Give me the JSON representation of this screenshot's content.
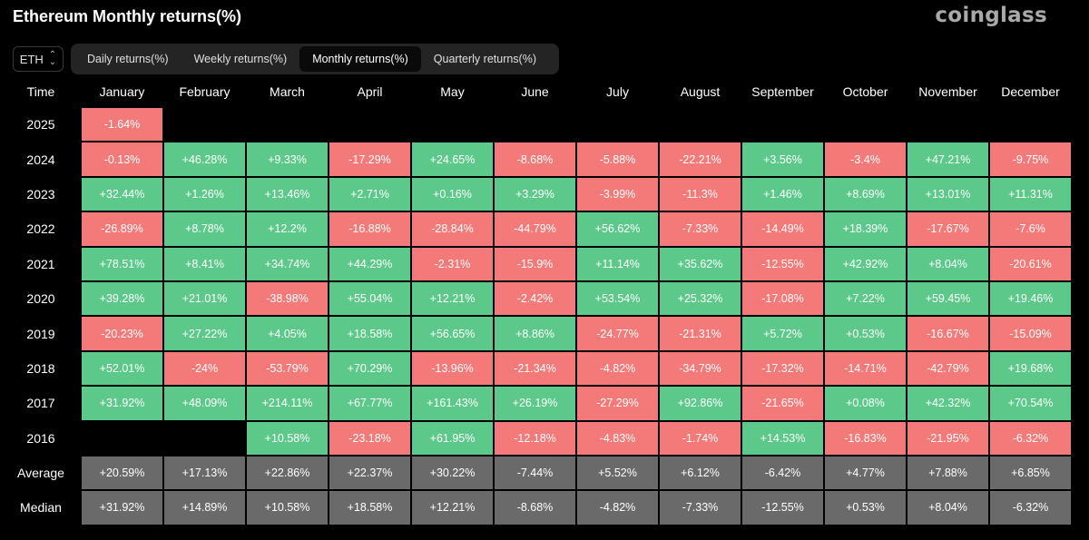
{
  "title": "Ethereum Monthly returns(%)",
  "brand": "coinglass",
  "asset_select": {
    "value": "ETH"
  },
  "tabs": [
    {
      "label": "Daily returns(%)",
      "active": false
    },
    {
      "label": "Weekly returns(%)",
      "active": false
    },
    {
      "label": "Monthly returns(%)",
      "active": true
    },
    {
      "label": "Quarterly returns(%)",
      "active": false
    }
  ],
  "colors": {
    "positive": "#5cc98a",
    "negative": "#f47a7a",
    "stat": "#6a6a6a"
  },
  "table": {
    "columns": [
      "Time",
      "January",
      "February",
      "March",
      "April",
      "May",
      "June",
      "July",
      "August",
      "September",
      "October",
      "November",
      "December"
    ],
    "rows": [
      {
        "label": "2025",
        "values": [
          "-1.64%",
          "",
          "",
          "",
          "",
          "",
          "",
          "",
          "",
          "",
          "",
          ""
        ]
      },
      {
        "label": "2024",
        "values": [
          "-0.13%",
          "+46.28%",
          "+9.33%",
          "-17.29%",
          "+24.65%",
          "-8.68%",
          "-5.88%",
          "-22.21%",
          "+3.56%",
          "-3.4%",
          "+47.21%",
          "-9.75%"
        ]
      },
      {
        "label": "2023",
        "values": [
          "+32.44%",
          "+1.26%",
          "+13.46%",
          "+2.71%",
          "+0.16%",
          "+3.29%",
          "-3.99%",
          "-11.3%",
          "+1.46%",
          "+8.69%",
          "+13.01%",
          "+11.31%"
        ]
      },
      {
        "label": "2022",
        "values": [
          "-26.89%",
          "+8.78%",
          "+12.2%",
          "-16.88%",
          "-28.84%",
          "-44.79%",
          "+56.62%",
          "-7.33%",
          "-14.49%",
          "+18.39%",
          "-17.67%",
          "-7.6%"
        ]
      },
      {
        "label": "2021",
        "values": [
          "+78.51%",
          "+8.41%",
          "+34.74%",
          "+44.29%",
          "-2.31%",
          "-15.9%",
          "+11.14%",
          "+35.62%",
          "-12.55%",
          "+42.92%",
          "+8.04%",
          "-20.61%"
        ]
      },
      {
        "label": "2020",
        "values": [
          "+39.28%",
          "+21.01%",
          "-38.98%",
          "+55.04%",
          "+12.21%",
          "-2.42%",
          "+53.54%",
          "+25.32%",
          "-17.08%",
          "+7.22%",
          "+59.45%",
          "+19.46%"
        ]
      },
      {
        "label": "2019",
        "values": [
          "-20.23%",
          "+27.22%",
          "+4.05%",
          "+18.58%",
          "+56.65%",
          "+8.86%",
          "-24.77%",
          "-21.31%",
          "+5.72%",
          "+0.53%",
          "-16.67%",
          "-15.09%"
        ]
      },
      {
        "label": "2018",
        "values": [
          "+52.01%",
          "-24%",
          "-53.79%",
          "+70.29%",
          "-13.96%",
          "-21.34%",
          "-4.82%",
          "-34.79%",
          "-17.32%",
          "-14.71%",
          "-42.79%",
          "+19.68%"
        ]
      },
      {
        "label": "2017",
        "values": [
          "+31.92%",
          "+48.09%",
          "+214.11%",
          "+67.77%",
          "+161.43%",
          "+26.19%",
          "-27.29%",
          "+92.86%",
          "-21.65%",
          "+0.08%",
          "+42.32%",
          "+70.54%"
        ]
      },
      {
        "label": "2016",
        "values": [
          "",
          "",
          "+10.58%",
          "-23.18%",
          "+61.95%",
          "-12.18%",
          "-4.83%",
          "-1.74%",
          "+14.53%",
          "-16.83%",
          "-21.95%",
          "-6.32%"
        ]
      }
    ],
    "stats": [
      {
        "label": "Average",
        "values": [
          "+20.59%",
          "+17.13%",
          "+22.86%",
          "+22.37%",
          "+30.22%",
          "-7.44%",
          "+5.52%",
          "+6.12%",
          "-6.42%",
          "+4.77%",
          "+7.88%",
          "+6.85%"
        ]
      },
      {
        "label": "Median",
        "values": [
          "+31.92%",
          "+14.89%",
          "+10.58%",
          "+18.58%",
          "+12.21%",
          "-8.68%",
          "-4.82%",
          "-7.33%",
          "-12.55%",
          "+0.53%",
          "+8.04%",
          "-6.32%"
        ]
      }
    ]
  }
}
